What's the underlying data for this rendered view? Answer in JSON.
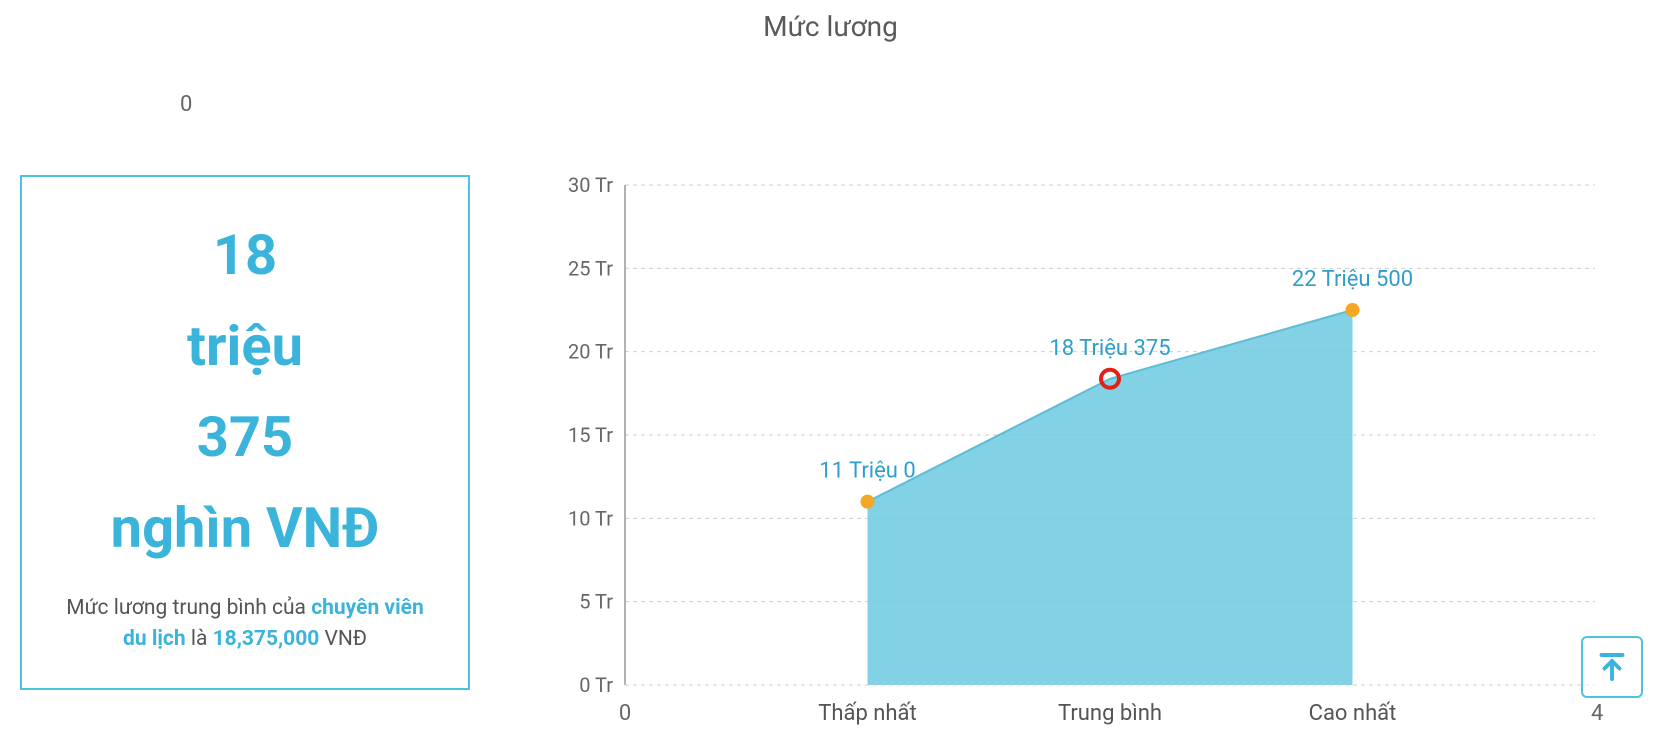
{
  "title": "Mức lương",
  "top_zero": "0",
  "card": {
    "l1": "18",
    "l2": "triệu",
    "l3": "375",
    "l4": "nghìn VNĐ",
    "desc_pre": "Mức lương trung bình của ",
    "desc_job": "chuyên viên du lịch",
    "desc_mid": " là ",
    "desc_val": "18,375,000",
    "desc_suf": " VNĐ"
  },
  "chart": {
    "type": "area",
    "background_color": "#ffffff",
    "grid_color": "#cfcfcf",
    "axis_color": "#999999",
    "area_color": "#6cc9e0",
    "line_color": "#5bbdd6",
    "label_color": "#2e9fc9",
    "tick_label_color": "#666666",
    "category_label_color": "#555555",
    "normal_dot_color": "#f5a623",
    "highlight_dot_stroke": "#e32015",
    "ylim": [
      0,
      30
    ],
    "ytick_step": 5,
    "y_unit_suffix": " Tr",
    "y_ticks": [
      "0 Tr",
      "5 Tr",
      "10 Tr",
      "15 Tr",
      "20 Tr",
      "25 Tr",
      "30 Tr"
    ],
    "x_left_label": "0",
    "x_right_label": "4",
    "categories": [
      "Thấp nhất",
      "Trung bình",
      "Cao nhất"
    ],
    "values_million": [
      11.0,
      18.375,
      22.5
    ],
    "point_labels": [
      "11 Triệu 0",
      "18 Triệu 375",
      "22 Triệu 500"
    ],
    "highlight_index": 1,
    "label_fontsize": 22,
    "tick_fontsize": 20,
    "dot_radius": 7,
    "highlight_radius": 9
  },
  "scroll_top": {
    "icon_color": "#3ab4db",
    "border_color": "#4ec3e0"
  }
}
